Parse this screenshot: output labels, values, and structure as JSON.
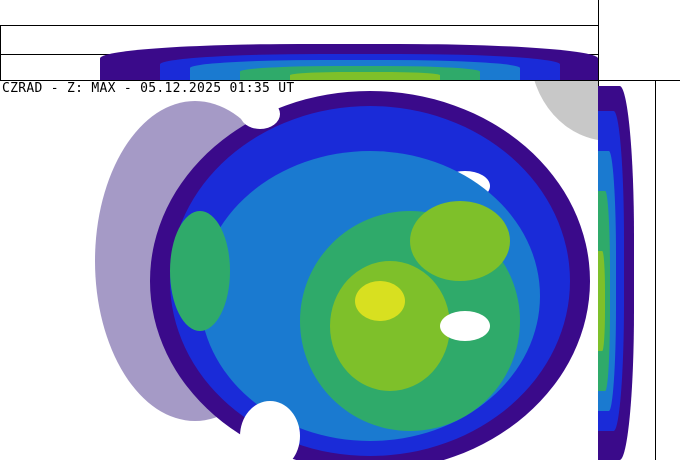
{
  "title": "CZRAD - Z: MAX - 05.12.2025 01:35 UT",
  "colors": {
    "clutter": "#9b8fc0",
    "very_weak": "#3a0a8a",
    "weak": "#1a2bd8",
    "light": "#1a7ad0",
    "moderate": "#2faa6a",
    "medium": "#7ec02a",
    "strong": "#d8e020",
    "outside_range": "#c8c8c8"
  }
}
